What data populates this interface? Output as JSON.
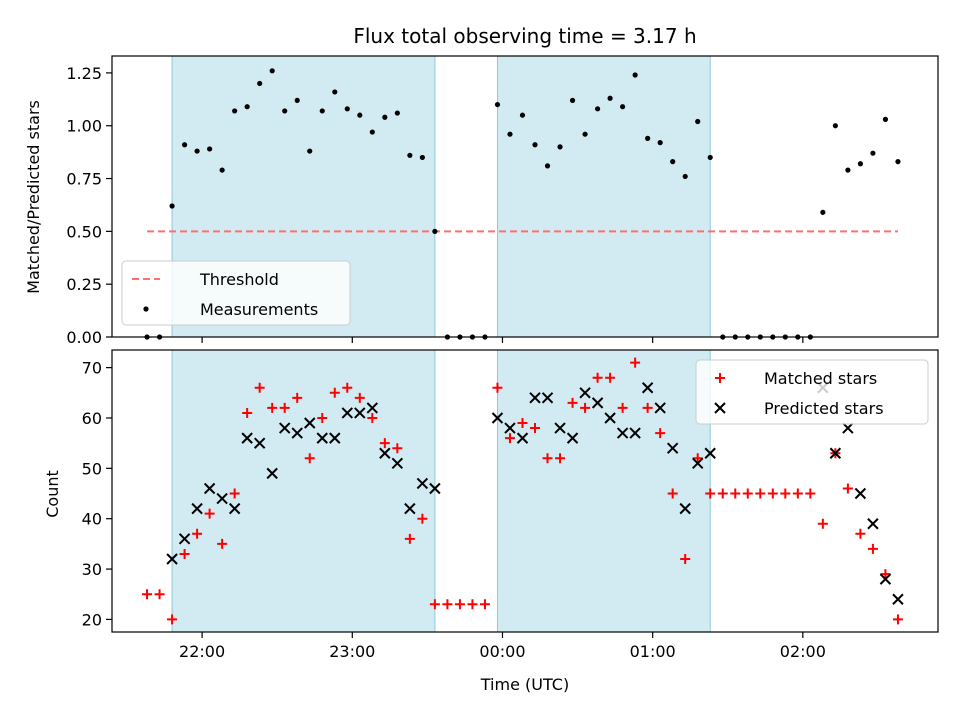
{
  "chart_data": [
    {
      "type": "scatter",
      "title": "Flux total observing time = 3.17 h",
      "xlabel": "",
      "ylabel": "Matched/Predicted stars",
      "ylim": [
        0,
        1.33
      ],
      "xlim": [
        "21:24",
        "02:54"
      ],
      "y_ticks": [
        0.0,
        0.25,
        0.5,
        0.75,
        1.0,
        1.25
      ],
      "y_tick_labels": [
        "0.00",
        "0.25",
        "0.50",
        "0.75",
        "1.00",
        "1.25"
      ],
      "x_ticks": [
        "22:00",
        "23:00",
        "00:00",
        "01:00",
        "02:00"
      ],
      "x_tick_labels": [
        "",
        "",
        "",
        "",
        ""
      ],
      "shaded_intervals": [
        [
          "21:48",
          "23:33"
        ],
        [
          "23:58",
          "01:23"
        ]
      ],
      "shade_color": "#add8e6",
      "legend": {
        "placement": "lower-left",
        "entries": [
          "Threshold",
          "Measurements"
        ]
      },
      "threshold": {
        "name": "Threshold",
        "value": 0.5,
        "x_range": [
          "21:38",
          "02:38"
        ],
        "color": "#ff6f6f",
        "style": "dashed"
      },
      "series": [
        {
          "name": "Measurements",
          "color": "#000000",
          "marker": "dot",
          "x": [
            "21:38",
            "21:43",
            "21:48",
            "21:53",
            "21:58",
            "22:03",
            "22:08",
            "22:13",
            "22:18",
            "22:23",
            "22:28",
            "22:33",
            "22:38",
            "22:43",
            "22:48",
            "22:53",
            "22:58",
            "23:03",
            "23:08",
            "23:13",
            "23:18",
            "23:23",
            "23:28",
            "23:33",
            "23:38",
            "23:43",
            "23:48",
            "23:53",
            "23:58",
            "00:03",
            "00:08",
            "00:13",
            "00:18",
            "00:23",
            "00:28",
            "00:33",
            "00:38",
            "00:43",
            "00:48",
            "00:53",
            "00:58",
            "01:03",
            "01:08",
            "01:13",
            "01:18",
            "01:23",
            "01:28",
            "01:33",
            "01:38",
            "01:43",
            "01:48",
            "01:53",
            "01:58",
            "02:03",
            "02:08",
            "02:13",
            "02:18",
            "02:23",
            "02:28",
            "02:33",
            "02:38"
          ],
          "y": [
            0.0,
            0.0,
            0.62,
            0.91,
            0.88,
            0.89,
            0.79,
            1.07,
            1.09,
            1.2,
            1.26,
            1.07,
            1.12,
            0.88,
            1.07,
            1.16,
            1.08,
            1.05,
            0.97,
            1.04,
            1.06,
            0.86,
            0.85,
            0.5,
            0.0,
            0.0,
            0.0,
            0.0,
            1.1,
            0.96,
            1.05,
            0.91,
            0.81,
            0.9,
            1.12,
            0.96,
            1.08,
            1.13,
            1.09,
            1.24,
            0.94,
            0.92,
            0.83,
            0.76,
            1.02,
            0.85,
            0.0,
            0.0,
            0.0,
            0.0,
            0.0,
            0.0,
            0.0,
            0.0,
            0.59,
            1.0,
            0.79,
            0.82,
            0.87,
            1.03,
            0.83
          ]
        }
      ]
    },
    {
      "type": "scatter",
      "title": "",
      "xlabel": "Time (UTC)",
      "ylabel": "Count",
      "ylim": [
        17.5,
        73.5
      ],
      "xlim": [
        "21:24",
        "02:54"
      ],
      "y_ticks": [
        20,
        30,
        40,
        50,
        60,
        70
      ],
      "y_tick_labels": [
        "20",
        "30",
        "40",
        "50",
        "60",
        "70"
      ],
      "x_ticks": [
        "22:00",
        "23:00",
        "00:00",
        "01:00",
        "02:00"
      ],
      "x_tick_labels": [
        "22:00",
        "23:00",
        "00:00",
        "01:00",
        "02:00"
      ],
      "shaded_intervals": [
        [
          "21:48",
          "23:33"
        ],
        [
          "23:58",
          "01:23"
        ]
      ],
      "shade_color": "#add8e6",
      "legend": {
        "placement": "top-right",
        "entries": [
          "Matched stars",
          "Predicted stars"
        ]
      },
      "series": [
        {
          "name": "Matched stars",
          "color": "#ff0000",
          "marker": "plus",
          "x": [
            "21:38",
            "21:43",
            "21:48",
            "21:53",
            "21:58",
            "22:03",
            "22:08",
            "22:13",
            "22:18",
            "22:23",
            "22:28",
            "22:33",
            "22:38",
            "22:43",
            "22:48",
            "22:53",
            "22:58",
            "23:03",
            "23:08",
            "23:13",
            "23:18",
            "23:23",
            "23:28",
            "23:33",
            "23:38",
            "23:43",
            "23:48",
            "23:53",
            "23:58",
            "00:03",
            "00:08",
            "00:13",
            "00:18",
            "00:23",
            "00:28",
            "00:33",
            "00:38",
            "00:43",
            "00:48",
            "00:53",
            "00:58",
            "01:03",
            "01:08",
            "01:13",
            "01:18",
            "01:23",
            "01:28",
            "01:33",
            "01:38",
            "01:43",
            "01:48",
            "01:53",
            "01:58",
            "02:03",
            "02:08",
            "02:13",
            "02:18",
            "02:23",
            "02:28",
            "02:33",
            "02:38"
          ],
          "y": [
            25,
            25,
            20,
            33,
            37,
            41,
            35,
            45,
            61,
            66,
            62,
            62,
            64,
            52,
            60,
            65,
            66,
            64,
            60,
            55,
            54,
            36,
            40,
            23,
            23,
            23,
            23,
            23,
            66,
            56,
            59,
            58,
            52,
            52,
            63,
            62,
            68,
            68,
            62,
            71,
            62,
            57,
            45,
            32,
            52,
            45,
            45,
            45,
            45,
            45,
            45,
            45,
            45,
            45,
            39,
            53,
            46,
            37,
            34,
            29,
            20
          ]
        },
        {
          "name": "Predicted stars",
          "color": "#000000",
          "marker": "x",
          "x": [
            "21:48",
            "21:53",
            "21:58",
            "22:03",
            "22:08",
            "22:13",
            "22:18",
            "22:23",
            "22:28",
            "22:33",
            "22:38",
            "22:43",
            "22:48",
            "22:53",
            "22:58",
            "23:03",
            "23:08",
            "23:13",
            "23:18",
            "23:23",
            "23:28",
            "23:33",
            "23:58",
            "00:03",
            "00:08",
            "00:13",
            "00:18",
            "00:23",
            "00:28",
            "00:33",
            "00:38",
            "00:43",
            "00:48",
            "00:53",
            "00:58",
            "01:03",
            "01:08",
            "01:13",
            "01:18",
            "01:23",
            "02:08",
            "02:13",
            "02:18",
            "02:23",
            "02:28",
            "02:33",
            "02:38"
          ],
          "y": [
            32,
            36,
            42,
            46,
            44,
            42,
            56,
            55,
            49,
            58,
            57,
            59,
            56,
            56,
            61,
            61,
            62,
            53,
            51,
            42,
            47,
            46,
            60,
            58,
            56,
            64,
            64,
            58,
            56,
            65,
            63,
            60,
            57,
            57,
            66,
            62,
            54,
            42,
            51,
            53,
            66,
            53,
            58,
            45,
            39,
            28,
            24
          ]
        }
      ]
    }
  ]
}
